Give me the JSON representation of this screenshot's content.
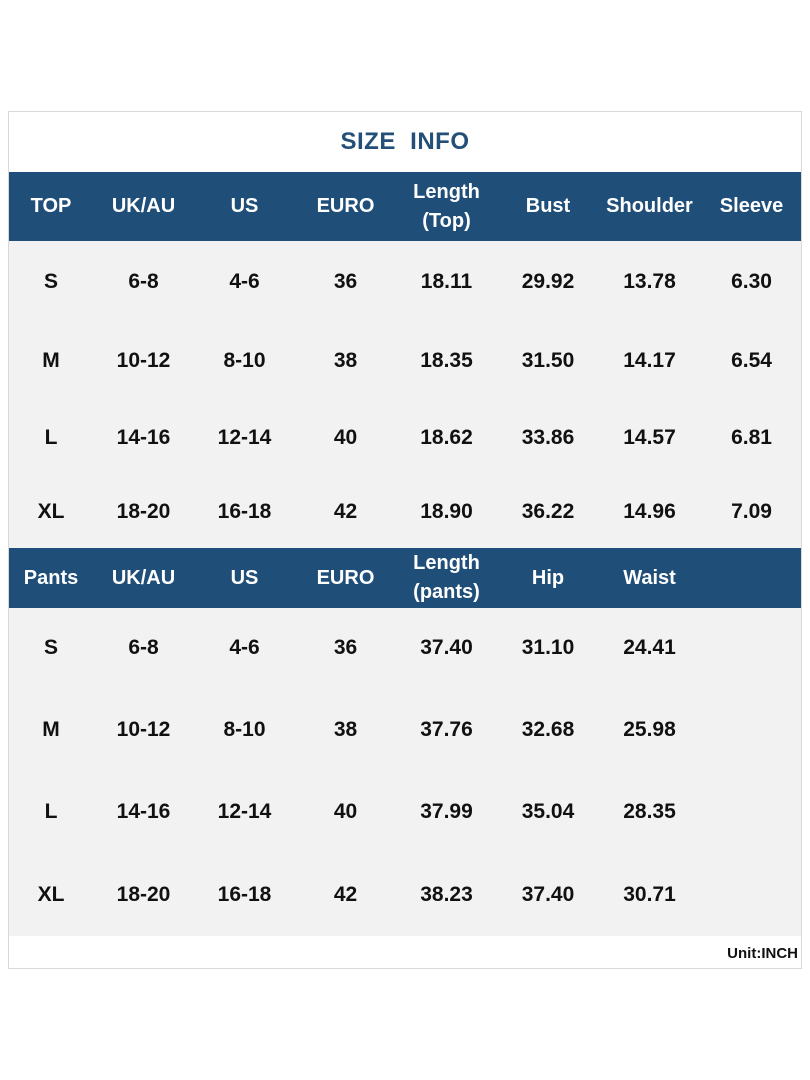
{
  "title": "SIZE  INFO",
  "top_table": {
    "headers": [
      "TOP",
      "UK/AU",
      "US",
      "EURO",
      "Length\n(Top)",
      "Bust",
      "Shoulder",
      "Sleeve"
    ],
    "rows": [
      [
        "S",
        "6-8",
        "4-6",
        "36",
        "18.11",
        "29.92",
        "13.78",
        "6.30"
      ],
      [
        "M",
        "10-12",
        "8-10",
        "38",
        "18.35",
        "31.50",
        "14.17",
        "6.54"
      ],
      [
        "L",
        "14-16",
        "12-14",
        "40",
        "18.62",
        "33.86",
        "14.57",
        "6.81"
      ],
      [
        "XL",
        "18-20",
        "16-18",
        "42",
        "18.90",
        "36.22",
        "14.96",
        "7.09"
      ]
    ]
  },
  "pants_table": {
    "headers": [
      "Pants",
      "UK/AU",
      "US",
      "EURO",
      "Length\n(pants)",
      "Hip",
      "Waist",
      ""
    ],
    "rows": [
      [
        "S",
        "6-8",
        "4-6",
        "36",
        "37.40",
        "31.10",
        "24.41",
        ""
      ],
      [
        "M",
        "10-12",
        "8-10",
        "38",
        "37.76",
        "32.68",
        "25.98",
        ""
      ],
      [
        "L",
        "14-16",
        "12-14",
        "40",
        "37.99",
        "35.04",
        "28.35",
        ""
      ],
      [
        "XL",
        "18-20",
        "16-18",
        "42",
        "38.23",
        "37.40",
        "30.71",
        ""
      ]
    ]
  },
  "unit_label": "Unit:INCH",
  "colors": {
    "header_bg": "#1f4e79",
    "title_text": "#234f78",
    "body_bg": "#f2f2f2"
  }
}
